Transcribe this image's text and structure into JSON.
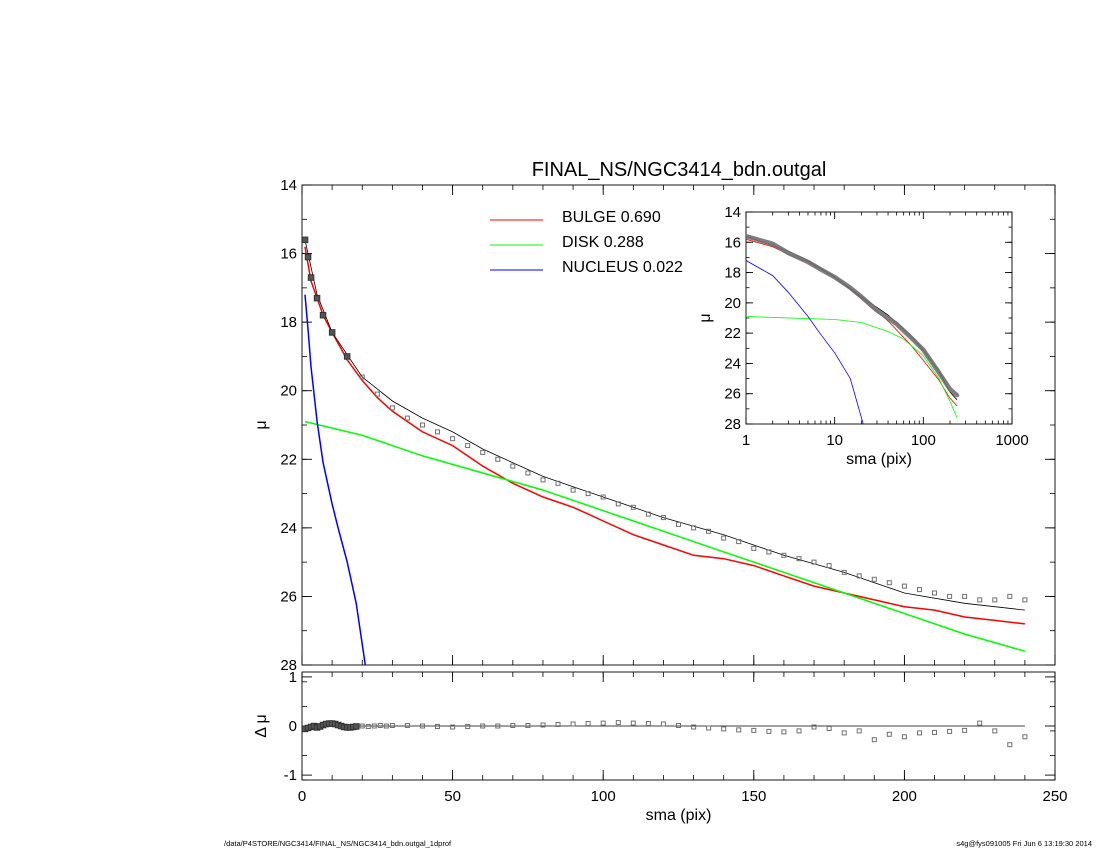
{
  "title": "FINAL_NS/NGC3414_bdn.outgal",
  "footer_left": "/data/P4STORE/NGC3414/FINAL_NS/NGC3414_bdn.outgal_1dprof",
  "footer_right": "s4g@fys091005  Fri Jun  6 13:19:30 2014",
  "colors": {
    "bulge": "#ff0000",
    "disk": "#00ff00",
    "nucleus": "#0000ff",
    "model": "#000000",
    "data": "#707070"
  },
  "chart_data": [
    {
      "id": "main",
      "type": "line",
      "title": "FINAL_NS/NGC3414_bdn.outgal",
      "xlabel": "",
      "ylabel": "μ",
      "xlim": [
        0,
        250
      ],
      "ylim": [
        28,
        14
      ],
      "y_inverted": true,
      "xticks": [
        0,
        50,
        100,
        150,
        200,
        250
      ],
      "yticks": [
        14,
        16,
        18,
        20,
        22,
        24,
        26,
        28
      ],
      "legend": [
        {
          "label": "BULGE  0.690",
          "color": "#ff0000"
        },
        {
          "label": "DISK  0.288",
          "color": "#00ff00"
        },
        {
          "label": "NUCLEUS  0.022",
          "color": "#0000ff"
        }
      ],
      "series": [
        {
          "name": "BULGE",
          "style": "line",
          "color": "#ff0000",
          "x": [
            1,
            2,
            3,
            5,
            7,
            10,
            15,
            20,
            25,
            30,
            40,
            50,
            60,
            70,
            80,
            90,
            95,
            100,
            110,
            120,
            130,
            140,
            150,
            160,
            170,
            180,
            190,
            200,
            210,
            220,
            230,
            240
          ],
          "y": [
            15.8,
            16.3,
            16.8,
            17.3,
            17.8,
            18.3,
            19.1,
            19.7,
            20.2,
            20.6,
            21.2,
            21.6,
            22.2,
            22.7,
            23.1,
            23.4,
            23.6,
            23.8,
            24.2,
            24.5,
            24.8,
            24.9,
            25.1,
            25.4,
            25.7,
            25.9,
            26.1,
            26.3,
            26.4,
            26.6,
            26.7,
            26.8
          ]
        },
        {
          "name": "DISK",
          "style": "line",
          "color": "#00ff00",
          "x": [
            1,
            20,
            40,
            60,
            80,
            100,
            120,
            140,
            160,
            180,
            200,
            220,
            240
          ],
          "y": [
            20.9,
            21.3,
            21.9,
            22.4,
            22.9,
            23.5,
            24.1,
            24.7,
            25.3,
            25.9,
            26.5,
            27.1,
            27.6
          ]
        },
        {
          "name": "NUCLEUS",
          "style": "line",
          "color": "#0000ff",
          "x": [
            1,
            2,
            3,
            5,
            7,
            10,
            12,
            15,
            18,
            21
          ],
          "y": [
            17.2,
            18.2,
            19.3,
            20.9,
            22.1,
            23.3,
            24.0,
            25.0,
            26.2,
            28.0
          ]
        },
        {
          "name": "MODEL",
          "style": "line",
          "color": "#000000",
          "x": [
            1,
            5,
            10,
            20,
            30,
            40,
            50,
            60,
            70,
            80,
            90,
            100,
            120,
            140,
            160,
            180,
            200,
            220,
            240
          ],
          "y": [
            15.6,
            17.2,
            18.3,
            19.6,
            20.3,
            20.8,
            21.2,
            21.7,
            22.1,
            22.5,
            22.8,
            23.1,
            23.7,
            24.2,
            24.8,
            25.3,
            25.9,
            26.2,
            26.4
          ]
        },
        {
          "name": "DATA",
          "style": "markers",
          "color": "#707070",
          "x": [
            1,
            2,
            3,
            5,
            7,
            10,
            15,
            20,
            25,
            30,
            35,
            40,
            45,
            50,
            55,
            60,
            65,
            70,
            75,
            80,
            85,
            90,
            95,
            100,
            105,
            110,
            115,
            120,
            125,
            130,
            135,
            140,
            145,
            150,
            155,
            160,
            165,
            170,
            175,
            180,
            185,
            190,
            195,
            200,
            205,
            210,
            215,
            220,
            225,
            230,
            235,
            240
          ],
          "y": [
            15.6,
            16.1,
            16.7,
            17.3,
            17.8,
            18.3,
            19.0,
            19.6,
            20.1,
            20.5,
            20.8,
            21.0,
            21.2,
            21.4,
            21.6,
            21.8,
            22.0,
            22.2,
            22.4,
            22.6,
            22.7,
            22.9,
            23.0,
            23.1,
            23.3,
            23.4,
            23.6,
            23.7,
            23.9,
            24.0,
            24.1,
            24.3,
            24.4,
            24.6,
            24.7,
            24.8,
            24.9,
            25.0,
            25.1,
            25.3,
            25.4,
            25.5,
            25.6,
            25.7,
            25.8,
            25.9,
            26.0,
            26.0,
            26.1,
            26.1,
            26.0,
            26.1
          ]
        }
      ]
    },
    {
      "id": "inset",
      "type": "line",
      "xlabel": "sma (pix)",
      "ylabel": "μ",
      "x_scale": "log",
      "xlim": [
        1,
        1000
      ],
      "ylim": [
        28,
        14
      ],
      "y_inverted": true,
      "xticks": [
        1,
        10,
        100,
        1000
      ],
      "xtick_labels": [
        "1",
        "10",
        "100",
        "1000"
      ],
      "yticks": [
        14,
        16,
        18,
        20,
        22,
        24,
        26,
        28
      ],
      "series": [
        {
          "name": "BULGE",
          "style": "line",
          "color": "#ff0000",
          "x": [
            1,
            2,
            3,
            5,
            10,
            20,
            40,
            70,
            100,
            150,
            200,
            240
          ],
          "y": [
            15.8,
            16.3,
            16.8,
            17.3,
            18.3,
            19.7,
            21.2,
            22.7,
            23.8,
            25.1,
            26.3,
            26.8
          ]
        },
        {
          "name": "DISK",
          "style": "line",
          "color": "#00ff00",
          "x": [
            1,
            10,
            20,
            40,
            60,
            100,
            150,
            200,
            240
          ],
          "y": [
            20.9,
            21.1,
            21.3,
            21.9,
            22.4,
            23.5,
            25.0,
            26.5,
            27.6
          ]
        },
        {
          "name": "NUCLEUS",
          "style": "line",
          "color": "#0000ff",
          "x": [
            1,
            2,
            3,
            5,
            7,
            10,
            15,
            21
          ],
          "y": [
            17.2,
            18.2,
            19.3,
            20.9,
            22.1,
            23.3,
            25.0,
            28.0
          ]
        },
        {
          "name": "MODEL",
          "style": "line",
          "color": "#000000",
          "x": [
            1,
            3,
            5,
            10,
            20,
            40,
            70,
            100,
            150,
            200,
            240
          ],
          "y": [
            15.6,
            16.6,
            17.2,
            18.3,
            19.6,
            20.8,
            22.1,
            23.1,
            24.5,
            25.9,
            26.4
          ]
        },
        {
          "name": "DATA",
          "style": "thick",
          "color": "#707070",
          "x": [
            1,
            2,
            3,
            5,
            7,
            10,
            15,
            20,
            30,
            40,
            50,
            70,
            100,
            150,
            200,
            240
          ],
          "y": [
            15.6,
            16.1,
            16.7,
            17.3,
            17.8,
            18.3,
            19.0,
            19.6,
            20.5,
            21.0,
            21.4,
            22.2,
            23.1,
            24.6,
            25.7,
            26.1
          ]
        }
      ]
    },
    {
      "id": "residual",
      "type": "scatter",
      "xlabel": "sma (pix)",
      "ylabel": "Δ μ",
      "xlim": [
        0,
        250
      ],
      "ylim": [
        -1.1,
        1.1
      ],
      "xticks": [
        0,
        50,
        100,
        150,
        200,
        250
      ],
      "yticks": [
        -1,
        0,
        1
      ],
      "zero_line": [
        0,
        240
      ],
      "series": [
        {
          "name": "RESIDUAL",
          "style": "markers",
          "color": "#707070",
          "x": [
            1,
            2,
            3,
            4,
            5,
            6,
            7,
            8,
            9,
            10,
            11,
            12,
            13,
            14,
            15,
            16,
            17,
            18,
            20,
            22,
            24,
            26,
            28,
            30,
            35,
            40,
            45,
            50,
            55,
            60,
            65,
            70,
            75,
            80,
            85,
            90,
            95,
            100,
            105,
            110,
            115,
            120,
            125,
            130,
            135,
            140,
            145,
            150,
            155,
            160,
            165,
            170,
            175,
            180,
            185,
            190,
            195,
            200,
            205,
            210,
            215,
            220,
            225,
            230,
            235,
            240
          ],
          "y": [
            -0.06,
            -0.04,
            -0.02,
            0.0,
            -0.03,
            -0.01,
            0.02,
            0.04,
            0.05,
            0.05,
            0.04,
            0.02,
            0.0,
            -0.02,
            -0.03,
            -0.03,
            -0.02,
            -0.01,
            0.0,
            -0.01,
            0.0,
            0.01,
            0.0,
            0.01,
            0.01,
            0.0,
            -0.01,
            -0.02,
            -0.01,
            0.0,
            0.0,
            0.01,
            0.01,
            0.02,
            0.03,
            0.04,
            0.05,
            0.06,
            0.07,
            0.06,
            0.05,
            0.04,
            0.01,
            -0.02,
            -0.04,
            -0.06,
            -0.08,
            -0.09,
            -0.11,
            -0.12,
            -0.1,
            -0.02,
            -0.05,
            -0.14,
            -0.1,
            -0.28,
            -0.17,
            -0.22,
            -0.14,
            -0.13,
            -0.11,
            -0.09,
            0.06,
            -0.1,
            -0.38,
            -0.22
          ]
        }
      ]
    }
  ]
}
